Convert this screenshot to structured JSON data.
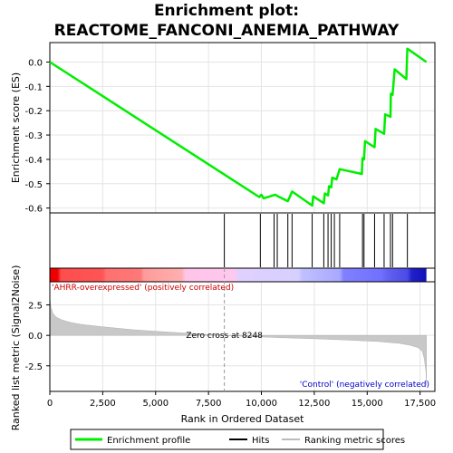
{
  "title_line1": "Enrichment plot:",
  "title_line2": "REACTOME_FANCONI_ANEMIA_PATHWAY",
  "chart_data": {
    "type": "line",
    "es_panel": {
      "ylabel": "Enrichment score (ES)",
      "yticks": [
        0.0,
        -0.1,
        -0.2,
        -0.3,
        -0.4,
        -0.5,
        -0.6
      ],
      "ytick_labels": [
        "0.0",
        "-0.1",
        "-0.2",
        "-0.3",
        "-0.4",
        "-0.5",
        "-0.6"
      ],
      "ylim": [
        -0.62,
        0.08
      ],
      "series": [
        {
          "name": "Enrichment profile",
          "color": "#00ee00",
          "x": [
            0,
            9900,
            10000,
            10100,
            10650,
            10750,
            11250,
            11450,
            12400,
            12450,
            12950,
            13000,
            13150,
            13200,
            13300,
            13350,
            13550,
            13700,
            14750,
            14780,
            14850,
            14900,
            15350,
            15400,
            15800,
            15850,
            16100,
            16120,
            16200,
            16300,
            16850,
            16900,
            17800
          ],
          "y": [
            0.0,
            -0.555,
            -0.545,
            -0.56,
            -0.545,
            -0.55,
            -0.572,
            -0.532,
            -0.59,
            -0.552,
            -0.58,
            -0.54,
            -0.548,
            -0.51,
            -0.515,
            -0.475,
            -0.482,
            -0.44,
            -0.46,
            -0.395,
            -0.4,
            -0.325,
            -0.35,
            -0.275,
            -0.295,
            -0.215,
            -0.225,
            -0.13,
            -0.135,
            -0.03,
            -0.07,
            0.055,
            0.0
          ]
        }
      ]
    },
    "hits": [
      8248,
      9950,
      10600,
      10750,
      11250,
      11450,
      12400,
      12950,
      13150,
      13300,
      13450,
      13700,
      14780,
      14850,
      15350,
      15800,
      16100,
      16200,
      16900
    ],
    "ranking_panel": {
      "ylabel": "Ranked list metric (Signal2Noise)",
      "yticks": [
        2.5,
        0.0,
        -2.5
      ],
      "ytick_labels": [
        "2.5",
        "0.0",
        "-2.5"
      ],
      "ylim": [
        -4.6,
        4.4
      ],
      "zero_cross_label": "Zero cross at 8248",
      "zero_cross": 8248,
      "positive_label": "'AHRR-overexpressed' (positively correlated)",
      "negative_label": "'Control' (negatively correlated)",
      "profile": {
        "x": [
          0,
          50,
          150,
          300,
          600,
          1000,
          1500,
          2500,
          4000,
          5500,
          7000,
          8248,
          9500,
          11000,
          12500,
          14000,
          15500,
          16500,
          17000,
          17400,
          17600,
          17700,
          17780,
          17800
        ],
        "y": [
          3.1,
          2.3,
          1.8,
          1.5,
          1.25,
          1.05,
          0.9,
          0.7,
          0.45,
          0.28,
          0.12,
          0.0,
          -0.1,
          -0.2,
          -0.28,
          -0.38,
          -0.5,
          -0.65,
          -0.8,
          -1.0,
          -1.3,
          -1.9,
          -3.0,
          -4.1
        ]
      }
    },
    "xaxis": {
      "label": "Rank in Ordered Dataset",
      "ticks": [
        0,
        2500,
        5000,
        7500,
        10000,
        12500,
        15000,
        17500
      ],
      "tick_labels": [
        "0",
        "2,500",
        "5,000",
        "7,500",
        "10,000",
        "12,500",
        "15,000",
        "17,500"
      ],
      "xlim": [
        0,
        18200
      ]
    },
    "legend": {
      "placement": "bottom",
      "entries": [
        {
          "label": "Enrichment profile",
          "color": "#00ee00"
        },
        {
          "label": "Hits",
          "color": "#000000"
        },
        {
          "label": "Ranking metric scores",
          "color": "#bbbbbb"
        }
      ]
    }
  }
}
